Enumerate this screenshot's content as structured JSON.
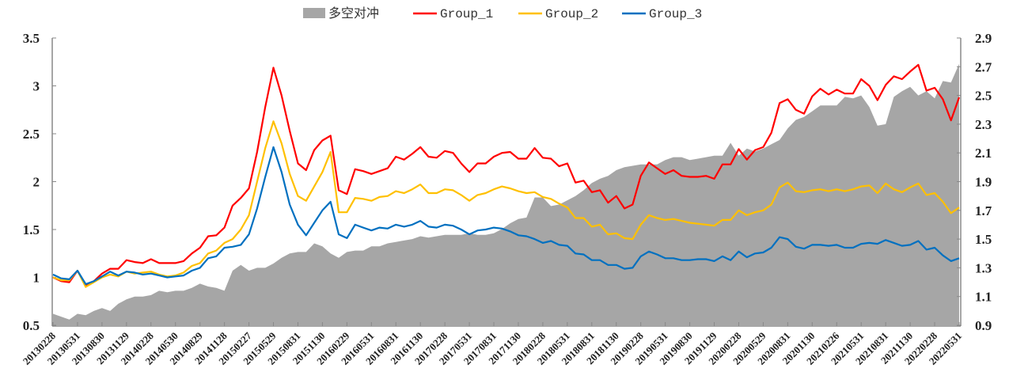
{
  "chart_data": {
    "type": "line",
    "title": "",
    "frequency": "monthly",
    "x_start": "201302",
    "x_end": "202205",
    "x_tick_labels": [
      "20130228",
      "20130531",
      "20130830",
      "20131129",
      "20140228",
      "20140530",
      "20140829",
      "20141128",
      "20150227",
      "20150529",
      "20150831",
      "20151130",
      "20160229",
      "20160531",
      "20160831",
      "20161130",
      "20170228",
      "20170531",
      "20170831",
      "20171130",
      "20180228",
      "20180531",
      "20180831",
      "20181130",
      "20190228",
      "20190531",
      "20190830",
      "20191129",
      "20200228",
      "20200529",
      "20200831",
      "20201130",
      "20210226",
      "20210531",
      "20210831",
      "20211130",
      "20220228",
      "20220531"
    ],
    "y_left": {
      "range": [
        0.5,
        3.5
      ],
      "ticks": [
        "0.5",
        "1",
        "1.5",
        "2",
        "2.5",
        "3",
        "3.5"
      ]
    },
    "y_right": {
      "range": [
        0.9,
        2.9
      ],
      "ticks": [
        "0.9",
        "1.1",
        "1.3",
        "1.5",
        "1.7",
        "1.9",
        "2.1",
        "2.3",
        "2.5",
        "2.7",
        "2.9"
      ]
    },
    "legend_position": "top-center",
    "grid": false,
    "series": [
      {
        "name": "多空对冲",
        "kind": "area",
        "axis": "right",
        "color": "#a6a6a6",
        "values": [
          0.98,
          0.96,
          0.94,
          0.98,
          0.97,
          1.0,
          1.02,
          1.0,
          1.05,
          1.08,
          1.1,
          1.1,
          1.11,
          1.14,
          1.13,
          1.14,
          1.14,
          1.16,
          1.19,
          1.17,
          1.16,
          1.14,
          1.28,
          1.32,
          1.28,
          1.3,
          1.3,
          1.33,
          1.37,
          1.4,
          1.41,
          1.41,
          1.47,
          1.45,
          1.4,
          1.37,
          1.41,
          1.42,
          1.42,
          1.45,
          1.45,
          1.47,
          1.48,
          1.49,
          1.5,
          1.52,
          1.51,
          1.52,
          1.53,
          1.53,
          1.53,
          1.54,
          1.53,
          1.53,
          1.54,
          1.57,
          1.61,
          1.64,
          1.65,
          1.79,
          1.79,
          1.73,
          1.74,
          1.77,
          1.8,
          1.84,
          1.89,
          1.92,
          1.94,
          1.98,
          2.0,
          2.01,
          2.02,
          2.02,
          2.02,
          2.05,
          2.07,
          2.07,
          2.05,
          2.06,
          2.07,
          2.08,
          2.08,
          2.17,
          2.08,
          2.13,
          2.11,
          2.13,
          2.16,
          2.19,
          2.27,
          2.33,
          2.35,
          2.39,
          2.43,
          2.43,
          2.43,
          2.49,
          2.48,
          2.5,
          2.42,
          2.29,
          2.3,
          2.49,
          2.53,
          2.56,
          2.5,
          2.53,
          2.48,
          2.6,
          2.59,
          2.72
        ]
      },
      {
        "name": "Group_1",
        "kind": "line",
        "axis": "left",
        "color": "#ff0000",
        "values": [
          1.0,
          0.96,
          0.95,
          1.07,
          0.92,
          0.96,
          1.04,
          1.09,
          1.09,
          1.18,
          1.16,
          1.15,
          1.19,
          1.15,
          1.15,
          1.15,
          1.17,
          1.25,
          1.31,
          1.43,
          1.44,
          1.52,
          1.75,
          1.83,
          1.93,
          2.31,
          2.78,
          3.19,
          2.9,
          2.53,
          2.19,
          2.12,
          2.33,
          2.43,
          2.48,
          1.91,
          1.87,
          2.13,
          2.11,
          2.08,
          2.11,
          2.14,
          2.26,
          2.23,
          2.29,
          2.36,
          2.26,
          2.25,
          2.32,
          2.3,
          2.19,
          2.1,
          2.19,
          2.19,
          2.26,
          2.3,
          2.31,
          2.24,
          2.24,
          2.35,
          2.25,
          2.24,
          2.16,
          2.19,
          1.99,
          2.01,
          1.89,
          1.91,
          1.78,
          1.85,
          1.72,
          1.76,
          2.06,
          2.2,
          2.14,
          2.08,
          2.12,
          2.06,
          2.05,
          2.05,
          2.06,
          2.03,
          2.18,
          2.18,
          2.34,
          2.23,
          2.33,
          2.36,
          2.51,
          2.82,
          2.86,
          2.75,
          2.71,
          2.89,
          2.97,
          2.91,
          2.96,
          2.92,
          2.92,
          3.07,
          3.0,
          2.85,
          3.01,
          3.1,
          3.07,
          3.15,
          3.22,
          2.95,
          2.98,
          2.86,
          2.64,
          2.88
        ]
      },
      {
        "name": "Group_2",
        "kind": "line",
        "axis": "left",
        "color": "#ffc000",
        "values": [
          1.0,
          0.97,
          0.97,
          1.07,
          0.9,
          0.95,
          1.0,
          1.03,
          1.01,
          1.06,
          1.04,
          1.05,
          1.06,
          1.03,
          1.01,
          1.02,
          1.05,
          1.12,
          1.15,
          1.25,
          1.28,
          1.36,
          1.4,
          1.5,
          1.65,
          2.0,
          2.35,
          2.63,
          2.4,
          2.08,
          1.85,
          1.8,
          1.95,
          2.1,
          2.31,
          1.68,
          1.68,
          1.83,
          1.82,
          1.8,
          1.84,
          1.85,
          1.9,
          1.88,
          1.92,
          1.97,
          1.88,
          1.88,
          1.92,
          1.91,
          1.86,
          1.8,
          1.86,
          1.88,
          1.92,
          1.95,
          1.93,
          1.9,
          1.88,
          1.89,
          1.84,
          1.82,
          1.77,
          1.73,
          1.62,
          1.62,
          1.53,
          1.55,
          1.45,
          1.46,
          1.41,
          1.4,
          1.55,
          1.65,
          1.62,
          1.6,
          1.61,
          1.59,
          1.57,
          1.56,
          1.55,
          1.54,
          1.6,
          1.6,
          1.7,
          1.65,
          1.68,
          1.7,
          1.76,
          1.94,
          1.99,
          1.9,
          1.89,
          1.91,
          1.92,
          1.9,
          1.92,
          1.9,
          1.92,
          1.95,
          1.96,
          1.88,
          1.98,
          1.92,
          1.89,
          1.94,
          1.98,
          1.86,
          1.88,
          1.79,
          1.67,
          1.73
        ]
      },
      {
        "name": "Group_3",
        "kind": "line",
        "axis": "left",
        "color": "#0070c0",
        "values": [
          1.03,
          0.99,
          0.98,
          1.07,
          0.93,
          0.96,
          1.01,
          1.06,
          1.02,
          1.06,
          1.05,
          1.03,
          1.04,
          1.02,
          1.0,
          1.01,
          1.02,
          1.07,
          1.1,
          1.2,
          1.22,
          1.31,
          1.32,
          1.34,
          1.45,
          1.72,
          2.05,
          2.36,
          2.1,
          1.76,
          1.55,
          1.44,
          1.57,
          1.7,
          1.79,
          1.45,
          1.41,
          1.55,
          1.52,
          1.49,
          1.52,
          1.51,
          1.55,
          1.53,
          1.55,
          1.59,
          1.53,
          1.52,
          1.55,
          1.54,
          1.5,
          1.45,
          1.49,
          1.5,
          1.52,
          1.51,
          1.48,
          1.44,
          1.43,
          1.4,
          1.36,
          1.38,
          1.34,
          1.33,
          1.25,
          1.24,
          1.18,
          1.18,
          1.13,
          1.13,
          1.09,
          1.1,
          1.22,
          1.27,
          1.24,
          1.2,
          1.2,
          1.18,
          1.18,
          1.19,
          1.19,
          1.17,
          1.22,
          1.18,
          1.27,
          1.21,
          1.25,
          1.26,
          1.31,
          1.42,
          1.4,
          1.32,
          1.3,
          1.34,
          1.34,
          1.33,
          1.34,
          1.31,
          1.31,
          1.35,
          1.36,
          1.35,
          1.39,
          1.36,
          1.33,
          1.34,
          1.38,
          1.29,
          1.31,
          1.23,
          1.17,
          1.2
        ]
      }
    ]
  }
}
